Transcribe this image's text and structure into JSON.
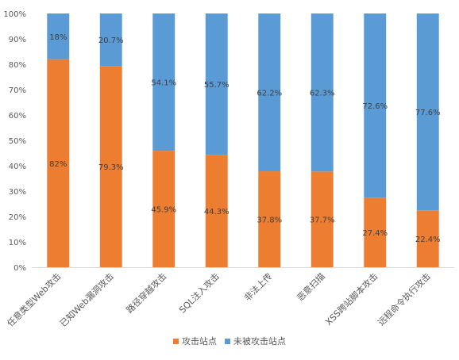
{
  "chart_data": {
    "type": "bar",
    "stacked": true,
    "percent": true,
    "categories": [
      "任意类型Web攻击",
      "已知Web漏洞攻击",
      "路径穿越攻击",
      "SQL注入攻击",
      "非法上传",
      "恶意扫描",
      "XSS跨站脚本攻击",
      "远程命令执行攻击"
    ],
    "series": [
      {
        "name": "攻击站点",
        "color": "#ED7D31",
        "values": [
          82,
          79.3,
          45.9,
          44.3,
          37.8,
          37.7,
          27.4,
          22.4
        ],
        "labels": [
          "82%",
          "79.3%",
          "45.9%",
          "44.3%",
          "37.8%",
          "37.7%",
          "27.4%",
          "22.4%"
        ]
      },
      {
        "name": "未被攻击站点",
        "color": "#5B9BD5",
        "values": [
          18,
          20.7,
          54.1,
          55.7,
          62.2,
          62.3,
          72.6,
          77.6
        ],
        "labels": [
          "18%",
          "20.7%",
          "54.1%",
          "55.7%",
          "62.2%",
          "62.3%",
          "72.6%",
          "77.6%"
        ]
      }
    ],
    "y_ticks": [
      "0%",
      "10%",
      "20%",
      "30%",
      "40%",
      "50%",
      "60%",
      "70%",
      "80%",
      "90%",
      "100%"
    ],
    "ylim": [
      0,
      100
    ],
    "grid": false,
    "legend_position": "bottom"
  }
}
